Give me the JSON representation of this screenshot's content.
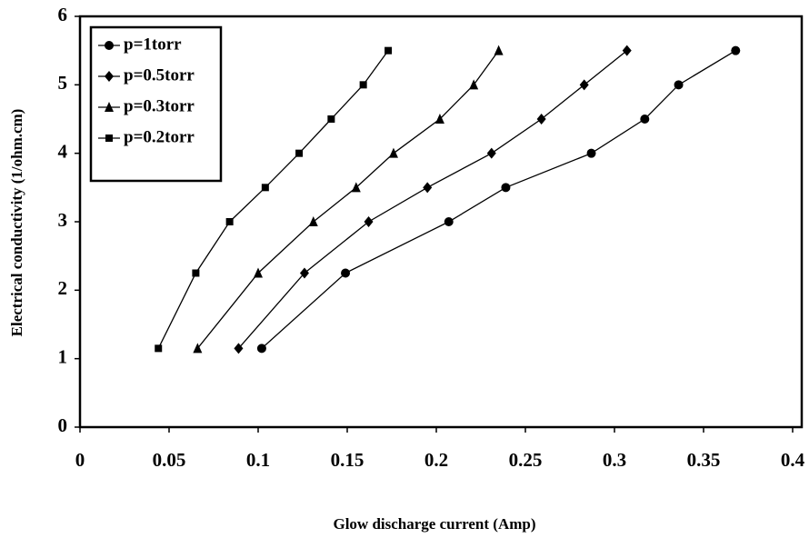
{
  "chart_data": {
    "type": "line",
    "x_label": "Glow discharge current (Amp)",
    "y_label": "Electrical conductivity (1/ohm.cm)",
    "xlim": [
      0,
      0.4
    ],
    "xticks": [
      0,
      0.05,
      0.1,
      0.15,
      0.2,
      0.25,
      0.3,
      0.35,
      0.4
    ],
    "ylim": [
      0,
      6
    ],
    "yticks": [
      0,
      1,
      2,
      3,
      4,
      5,
      6
    ],
    "legend": "top-left",
    "series": [
      {
        "name": "p=1torr",
        "color": "#000000",
        "marker": "circle",
        "x": [
          0.102,
          0.149,
          0.207,
          0.239,
          0.287,
          0.317,
          0.336,
          0.368
        ],
        "values": [
          1.15,
          2.25,
          3.0,
          3.5,
          4.0,
          4.5,
          5.0,
          5.5
        ]
      },
      {
        "name": "p=0.5torr",
        "color": "#000000",
        "marker": "diamond",
        "x": [
          0.089,
          0.126,
          0.162,
          0.195,
          0.231,
          0.259,
          0.283,
          0.307
        ],
        "values": [
          1.15,
          2.25,
          3.0,
          3.5,
          4.0,
          4.5,
          5.0,
          5.5
        ]
      },
      {
        "name": "p=0.3torr",
        "color": "#000000",
        "marker": "triangle",
        "x": [
          0.066,
          0.1,
          0.131,
          0.155,
          0.176,
          0.202,
          0.221,
          0.235
        ],
        "values": [
          1.15,
          2.25,
          3.0,
          3.5,
          4.0,
          4.5,
          5.0,
          5.5
        ]
      },
      {
        "name": "p=0.2torr",
        "color": "#000000",
        "marker": "square",
        "x": [
          0.044,
          0.065,
          0.084,
          0.104,
          0.123,
          0.141,
          0.159,
          0.173
        ],
        "values": [
          1.15,
          2.25,
          3.0,
          3.5,
          4.0,
          4.5,
          5.0,
          5.5
        ]
      }
    ]
  }
}
